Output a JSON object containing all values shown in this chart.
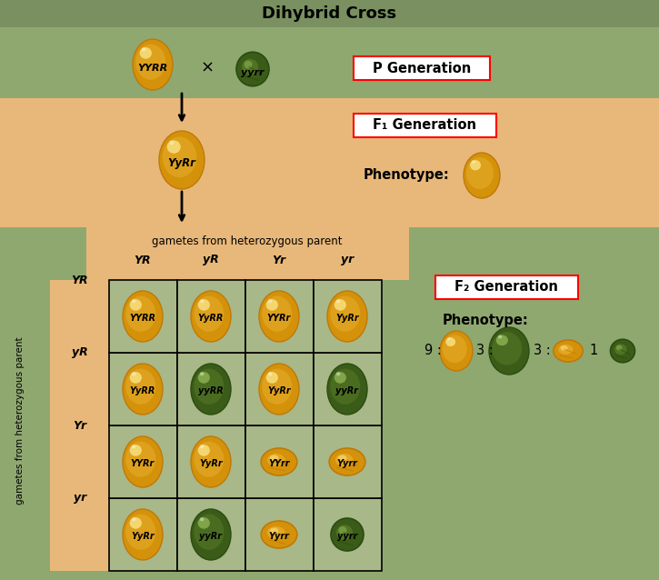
{
  "title": "Dihybrid Cross",
  "title_bg": "#7a9060",
  "bg_green": "#8fa870",
  "bg_peach": "#e8b87a",
  "bg_punnet_cell": "#a8b888",
  "p_gen_label": "P Generation",
  "f1_gen_label": "F₁ Generation",
  "f2_gen_label": "F₂ Generation",
  "phenotype_label": "Phenotype:",
  "gametes_top": "gametes from heterozygous parent",
  "gametes_side": "gametes from heterozygous parent",
  "col_headers": [
    "YR",
    "yR",
    "Yr",
    "yr"
  ],
  "row_headers": [
    "YR",
    "yR",
    "Yr",
    "yr"
  ],
  "grid_labels": [
    [
      "YYRR",
      "YyRR",
      "YYRr",
      "YyRr"
    ],
    [
      "YyRR",
      "yyRR",
      "YyRr",
      "yyRr"
    ],
    [
      "YYRr",
      "YyRr",
      "YYrr",
      "Yyrr"
    ],
    [
      "YyRr",
      "yyRr",
      "Yyrr",
      "yyrr"
    ]
  ],
  "grid_green": [
    [
      false,
      false,
      false,
      false
    ],
    [
      false,
      true,
      false,
      true
    ],
    [
      false,
      false,
      false,
      false
    ],
    [
      false,
      true,
      false,
      true
    ]
  ],
  "grid_wrinkled": [
    [
      false,
      false,
      false,
      false
    ],
    [
      false,
      false,
      false,
      false
    ],
    [
      false,
      false,
      true,
      true
    ],
    [
      false,
      false,
      true,
      true
    ]
  ],
  "grid_green_wrinkled": [
    [
      false,
      false,
      false,
      false
    ],
    [
      false,
      false,
      false,
      false
    ],
    [
      false,
      false,
      false,
      false
    ],
    [
      false,
      false,
      false,
      true
    ]
  ],
  "title_fontsize": 13,
  "label_fontsize": 10,
  "small_fontsize": 8,
  "cell_label_fontsize": 7
}
